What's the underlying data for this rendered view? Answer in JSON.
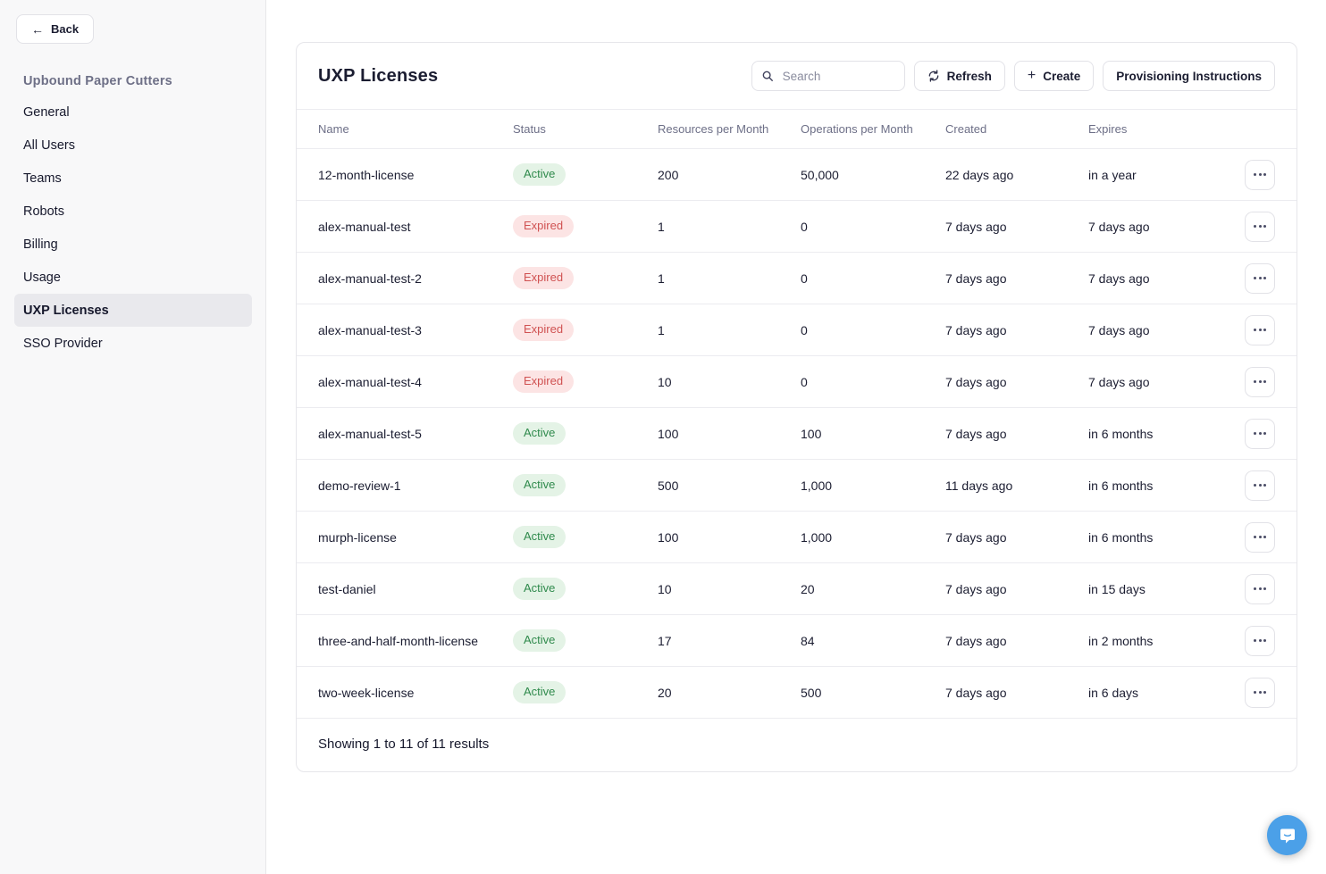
{
  "sidebar": {
    "back_label": "Back",
    "org_title": "Upbound Paper Cutters",
    "items": [
      {
        "label": "General",
        "active": false
      },
      {
        "label": "All Users",
        "active": false
      },
      {
        "label": "Teams",
        "active": false
      },
      {
        "label": "Robots",
        "active": false
      },
      {
        "label": "Billing",
        "active": false
      },
      {
        "label": "Usage",
        "active": false
      },
      {
        "label": "UXP Licenses",
        "active": true
      },
      {
        "label": "SSO Provider",
        "active": false
      }
    ]
  },
  "header": {
    "title": "UXP Licenses",
    "search_placeholder": "Search",
    "refresh_label": "Refresh",
    "create_label": "Create",
    "provisioning_label": "Provisioning Instructions"
  },
  "table": {
    "columns": [
      "Name",
      "Status",
      "Resources per Month",
      "Operations per Month",
      "Created",
      "Expires"
    ],
    "rows": [
      {
        "name": "12-month-license",
        "status": "Active",
        "resources": "200",
        "operations": "50,000",
        "created": "22 days ago",
        "expires": "in a year"
      },
      {
        "name": "alex-manual-test",
        "status": "Expired",
        "resources": "1",
        "operations": "0",
        "created": "7 days ago",
        "expires": "7 days ago"
      },
      {
        "name": "alex-manual-test-2",
        "status": "Expired",
        "resources": "1",
        "operations": "0",
        "created": "7 days ago",
        "expires": "7 days ago"
      },
      {
        "name": "alex-manual-test-3",
        "status": "Expired",
        "resources": "1",
        "operations": "0",
        "created": "7 days ago",
        "expires": "7 days ago"
      },
      {
        "name": "alex-manual-test-4",
        "status": "Expired",
        "resources": "10",
        "operations": "0",
        "created": "7 days ago",
        "expires": "7 days ago"
      },
      {
        "name": "alex-manual-test-5",
        "status": "Active",
        "resources": "100",
        "operations": "100",
        "created": "7 days ago",
        "expires": "in 6 months"
      },
      {
        "name": "demo-review-1",
        "status": "Active",
        "resources": "500",
        "operations": "1,000",
        "created": "11 days ago",
        "expires": "in 6 months"
      },
      {
        "name": "murph-license",
        "status": "Active",
        "resources": "100",
        "operations": "1,000",
        "created": "7 days ago",
        "expires": "in 6 months"
      },
      {
        "name": "test-daniel",
        "status": "Active",
        "resources": "10",
        "operations": "20",
        "created": "7 days ago",
        "expires": "in 15 days"
      },
      {
        "name": "three-and-half-month-license",
        "status": "Active",
        "resources": "17",
        "operations": "84",
        "created": "7 days ago",
        "expires": "in 2 months"
      },
      {
        "name": "two-week-license",
        "status": "Active",
        "resources": "20",
        "operations": "500",
        "created": "7 days ago",
        "expires": "in 6 days"
      }
    ],
    "footer": "Showing 1 to 11 of 11 results"
  },
  "icons": {
    "back": "arrow-left",
    "search": "magnifier",
    "refresh": "circular-arrows",
    "create": "plus",
    "row_actions": "ellipsis",
    "chat": "chat-bubble-smile"
  },
  "colors": {
    "active_badge_bg": "#e4f3e6",
    "active_badge_text": "#2f8a4c",
    "expired_badge_bg": "#fce4e4",
    "expired_badge_text": "#d05252",
    "chat_button": "#4ba0e8",
    "sidebar_bg": "#f8f8f9",
    "active_nav_bg": "#e9e9ed"
  }
}
